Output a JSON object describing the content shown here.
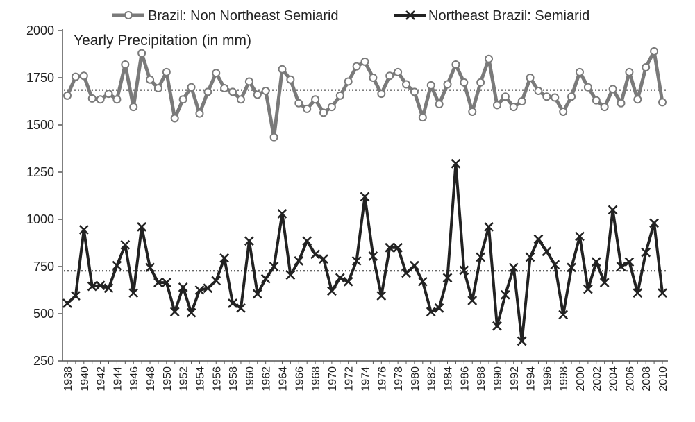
{
  "chart_data": {
    "type": "line",
    "title": "Yearly Precipitation (in mm)",
    "xlabel": "",
    "ylabel": "",
    "ylim": [
      250,
      2000
    ],
    "yticks": [
      250,
      500,
      750,
      1000,
      1250,
      1500,
      1750,
      2000
    ],
    "grid": false,
    "legend_position": "top",
    "x": [
      1938,
      1939,
      1940,
      1941,
      1942,
      1943,
      1944,
      1945,
      1946,
      1947,
      1948,
      1949,
      1950,
      1951,
      1952,
      1953,
      1954,
      1955,
      1956,
      1957,
      1958,
      1959,
      1960,
      1961,
      1962,
      1963,
      1964,
      1965,
      1966,
      1967,
      1968,
      1969,
      1970,
      1971,
      1972,
      1973,
      1974,
      1975,
      1976,
      1977,
      1978,
      1979,
      1980,
      1981,
      1982,
      1983,
      1984,
      1985,
      1986,
      1987,
      1988,
      1989,
      1990,
      1991,
      1992,
      1993,
      1994,
      1995,
      1996,
      1997,
      1998,
      1999,
      2000,
      2001,
      2002,
      2003,
      2004,
      2005,
      2006,
      2007,
      2008,
      2009,
      2010
    ],
    "xtick_labels": [
      "1938",
      "1940",
      "1942",
      "1944",
      "1946",
      "1948",
      "1950",
      "1952",
      "1954",
      "1956",
      "1958",
      "1960",
      "1962",
      "1964",
      "1966",
      "1968",
      "1970",
      "1972",
      "1974",
      "1976",
      "1978",
      "1980",
      "1982",
      "1984",
      "1986",
      "1988",
      "1990",
      "1992",
      "1994",
      "1996",
      "1998",
      "2000",
      "2002",
      "2004",
      "2006",
      "2008",
      "2010"
    ],
    "series": [
      {
        "name": "Brazil: Non Northeast Semiarid",
        "color": "#7a7a7a",
        "marker": "circle",
        "mean": 1685,
        "values": [
          1655,
          1755,
          1760,
          1640,
          1635,
          1665,
          1635,
          1820,
          1595,
          1880,
          1740,
          1695,
          1780,
          1535,
          1635,
          1700,
          1560,
          1675,
          1775,
          1695,
          1675,
          1635,
          1730,
          1660,
          1680,
          1435,
          1795,
          1740,
          1615,
          1585,
          1635,
          1565,
          1595,
          1655,
          1730,
          1810,
          1835,
          1750,
          1665,
          1760,
          1780,
          1715,
          1675,
          1540,
          1710,
          1610,
          1715,
          1820,
          1725,
          1570,
          1725,
          1850,
          1605,
          1650,
          1595,
          1625,
          1750,
          1680,
          1650,
          1645,
          1570,
          1650,
          1780,
          1700,
          1630,
          1595,
          1690,
          1615,
          1780,
          1635,
          1805,
          1890,
          1620
        ]
      },
      {
        "name": "Northeast Brazil: Semiarid",
        "color": "#222222",
        "marker": "x",
        "mean": 727,
        "values": [
          555,
          595,
          945,
          645,
          650,
          635,
          755,
          865,
          610,
          960,
          745,
          665,
          665,
          510,
          640,
          505,
          625,
          635,
          675,
          795,
          555,
          530,
          885,
          605,
          685,
          750,
          1030,
          705,
          780,
          885,
          815,
          790,
          620,
          690,
          670,
          780,
          1120,
          805,
          595,
          850,
          850,
          715,
          755,
          670,
          510,
          530,
          690,
          1295,
          730,
          570,
          800,
          960,
          435,
          600,
          745,
          355,
          800,
          895,
          830,
          760,
          495,
          745,
          910,
          630,
          775,
          665,
          1050,
          750,
          775,
          610,
          825,
          980,
          610
        ]
      }
    ]
  }
}
